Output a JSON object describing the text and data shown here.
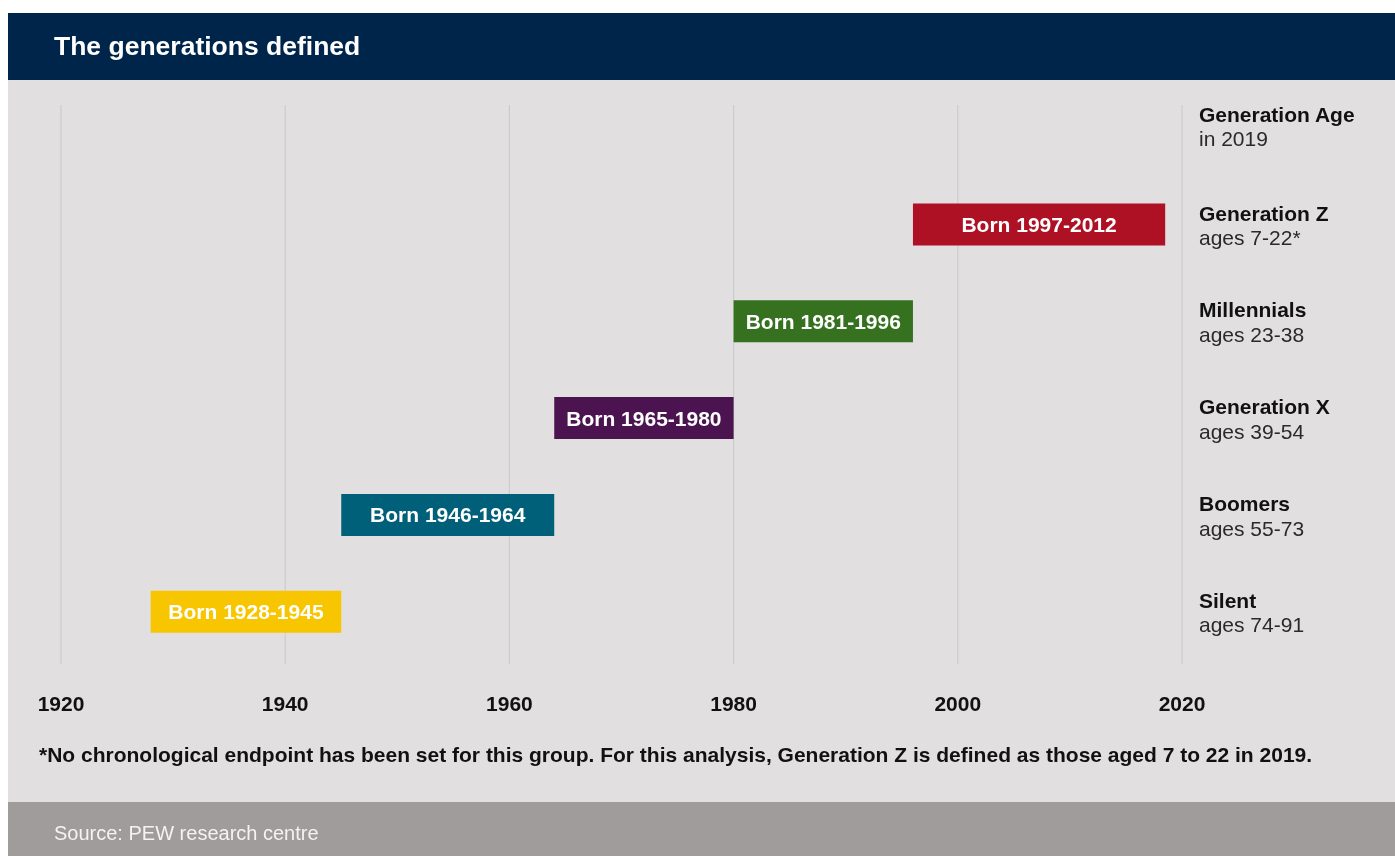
{
  "chart_data": {
    "type": "bar",
    "orientation": "horizontal",
    "title": "The generations defined",
    "ylabel": "Generation Age\nin 2019",
    "categories": [
      "Generation Z\nages 7-22*",
      "Millennials\nages 23-38",
      "Generation X\nages 39-54",
      "Boomers\nages 55-73",
      "Silent\nages 74-91"
    ],
    "base": [
      1996,
      1980,
      1964,
      1945,
      1928
    ],
    "values": [
      22.5,
      16,
      16,
      19,
      17
    ],
    "colors": [
      "#ae1124",
      "#36711f",
      "#4b1450",
      "#006079",
      "#f8c501"
    ],
    "value_labels": [
      "Born 1997-2012",
      "Born 1981-1996",
      "Born 1965-1980",
      "Born 1946-1964",
      "Born 1928-1945"
    ],
    "xlim": [
      1920,
      2020
    ],
    "xticks": [
      1920,
      1940,
      1960,
      1980,
      2000,
      2020
    ],
    "grid": "x",
    "annotations": [
      "*No chronological endpoint has been set for this group. For this analysis, Generation Z is defined as those aged 7 to 22 in 2019.",
      "Source: PEW research centre"
    ]
  }
}
